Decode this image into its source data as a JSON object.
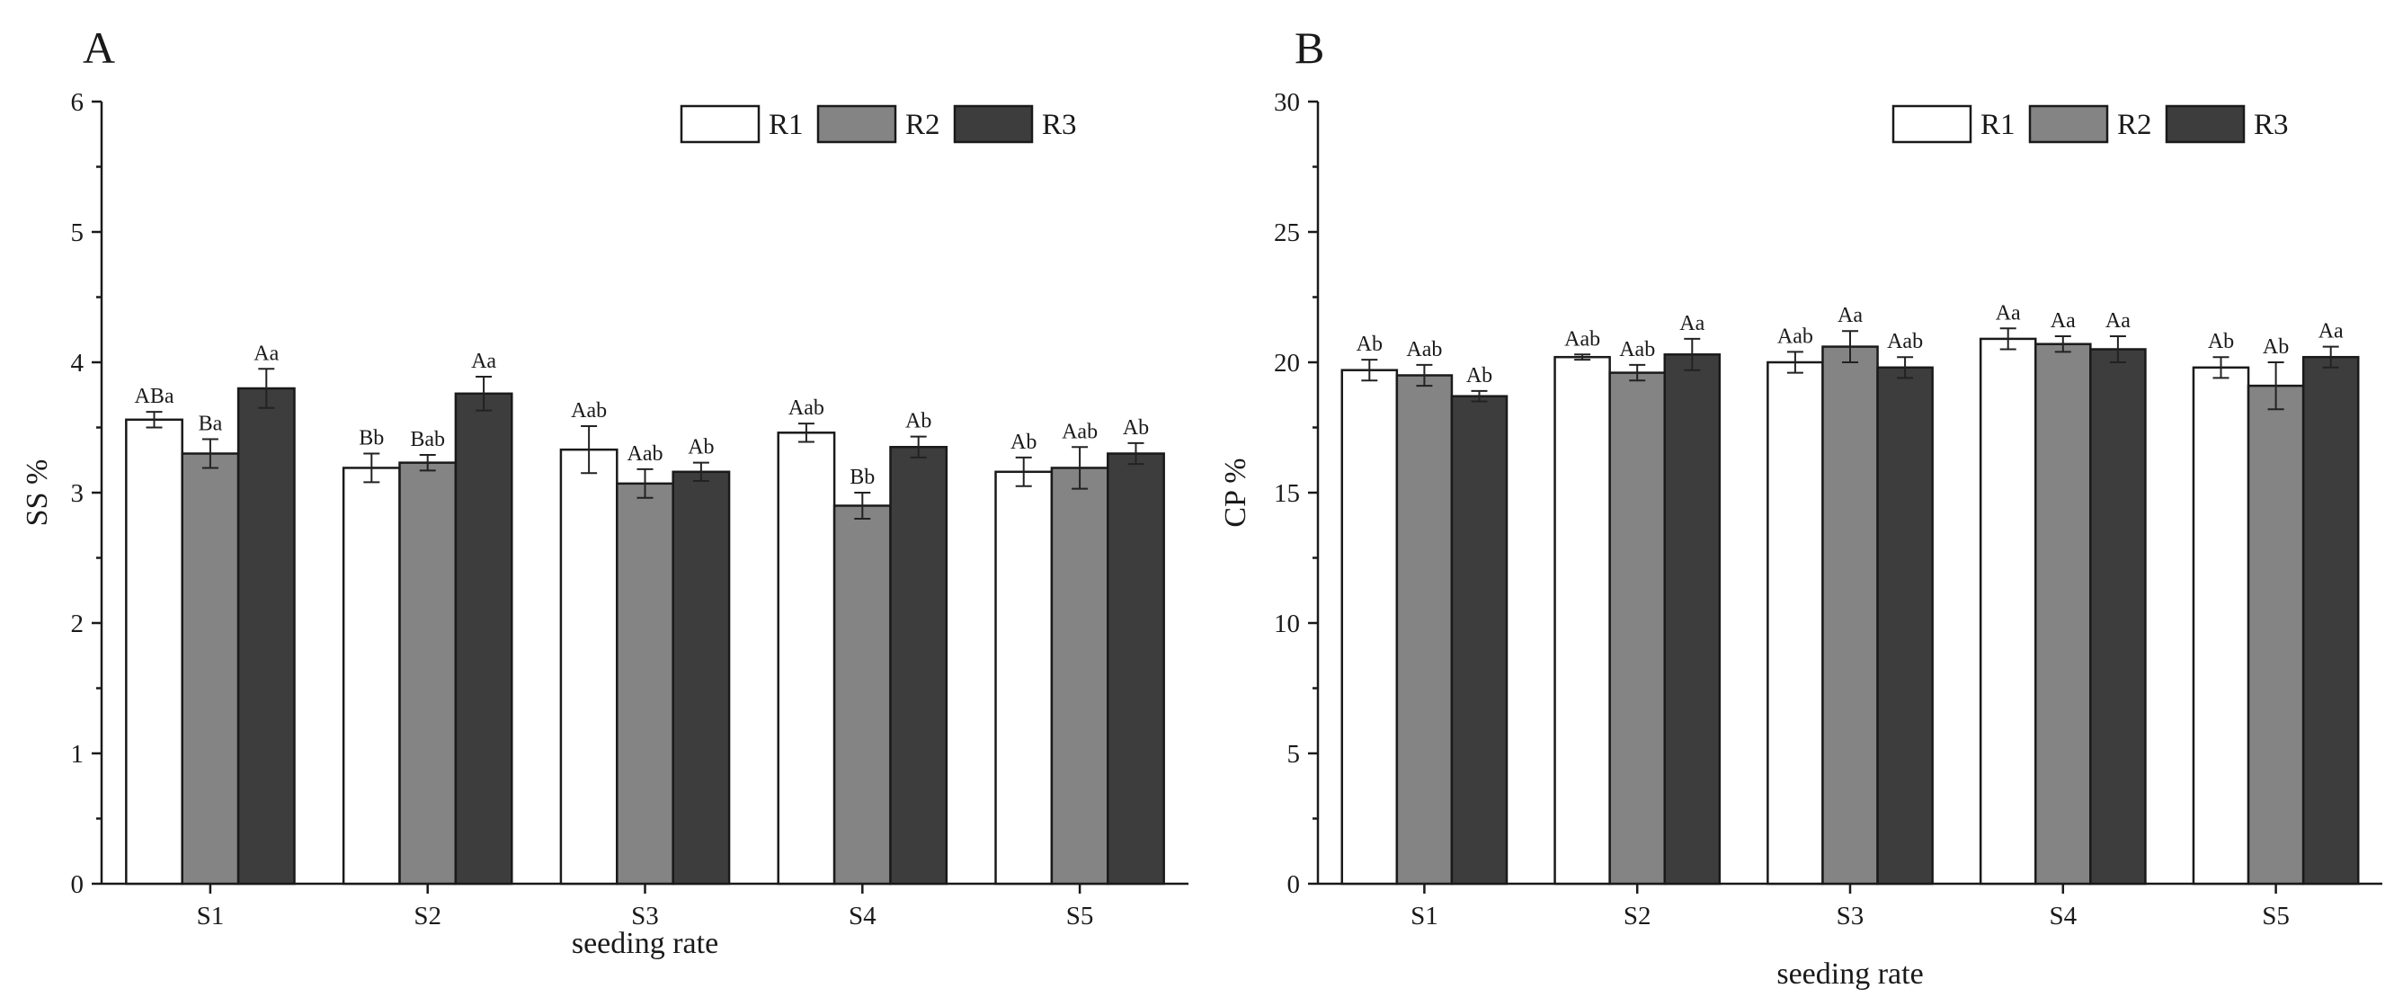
{
  "chart_data": [
    {
      "panel": "A",
      "type": "bar",
      "xlabel": "seeding rate",
      "ylabel": "SS %",
      "ylim": [
        0,
        6
      ],
      "yticks": [
        0,
        1,
        2,
        3,
        4,
        5,
        6
      ],
      "categories": [
        "S1",
        "S2",
        "S3",
        "S4",
        "S5"
      ],
      "legend_position": "top-right",
      "series": [
        {
          "name": "R1",
          "color": "#ffffff",
          "values": [
            3.56,
            3.19,
            3.33,
            3.46,
            3.16
          ],
          "errors": [
            0.06,
            0.11,
            0.18,
            0.07,
            0.11
          ],
          "labels": [
            "ABa",
            "Bb",
            "Aab",
            "Aab",
            "Ab"
          ]
        },
        {
          "name": "R2",
          "color": "#848484",
          "values": [
            3.3,
            3.23,
            3.07,
            2.9,
            3.19
          ],
          "errors": [
            0.11,
            0.06,
            0.11,
            0.1,
            0.16
          ],
          "labels": [
            "Ba",
            "Bab",
            "Aab",
            "Bb",
            "Aab"
          ]
        },
        {
          "name": "R3",
          "color": "#3d3d3d",
          "values": [
            3.8,
            3.76,
            3.16,
            3.35,
            3.3
          ],
          "errors": [
            0.15,
            0.13,
            0.07,
            0.08,
            0.08
          ],
          "labels": [
            "Aa",
            "Aa",
            "Ab",
            "Ab",
            "Ab"
          ]
        }
      ]
    },
    {
      "panel": "B",
      "type": "bar",
      "xlabel": "seeding rate",
      "ylabel": "CP %",
      "ylim": [
        0,
        30
      ],
      "yticks": [
        0,
        5,
        10,
        15,
        20,
        25,
        30
      ],
      "categories": [
        "S1",
        "S2",
        "S3",
        "S4",
        "S5"
      ],
      "legend_position": "top-right",
      "series": [
        {
          "name": "R1",
          "color": "#ffffff",
          "values": [
            19.7,
            20.2,
            20.0,
            20.9,
            19.8
          ],
          "errors": [
            0.4,
            0.1,
            0.4,
            0.4,
            0.4
          ],
          "labels": [
            "Ab",
            "Aab",
            "Aab",
            "Aa",
            "Ab"
          ]
        },
        {
          "name": "R2",
          "color": "#848484",
          "values": [
            19.5,
            19.6,
            20.6,
            20.7,
            19.1
          ],
          "errors": [
            0.4,
            0.3,
            0.6,
            0.3,
            0.9
          ],
          "labels": [
            "Aab",
            "Aab",
            "Aa",
            "Aa",
            "Ab"
          ]
        },
        {
          "name": "R3",
          "color": "#3d3d3d",
          "values": [
            18.7,
            20.3,
            19.8,
            20.5,
            20.2
          ],
          "errors": [
            0.2,
            0.6,
            0.4,
            0.5,
            0.4
          ],
          "labels": [
            "Ab",
            "Aa",
            "Aab",
            "Aa",
            "Aa"
          ]
        }
      ]
    }
  ]
}
